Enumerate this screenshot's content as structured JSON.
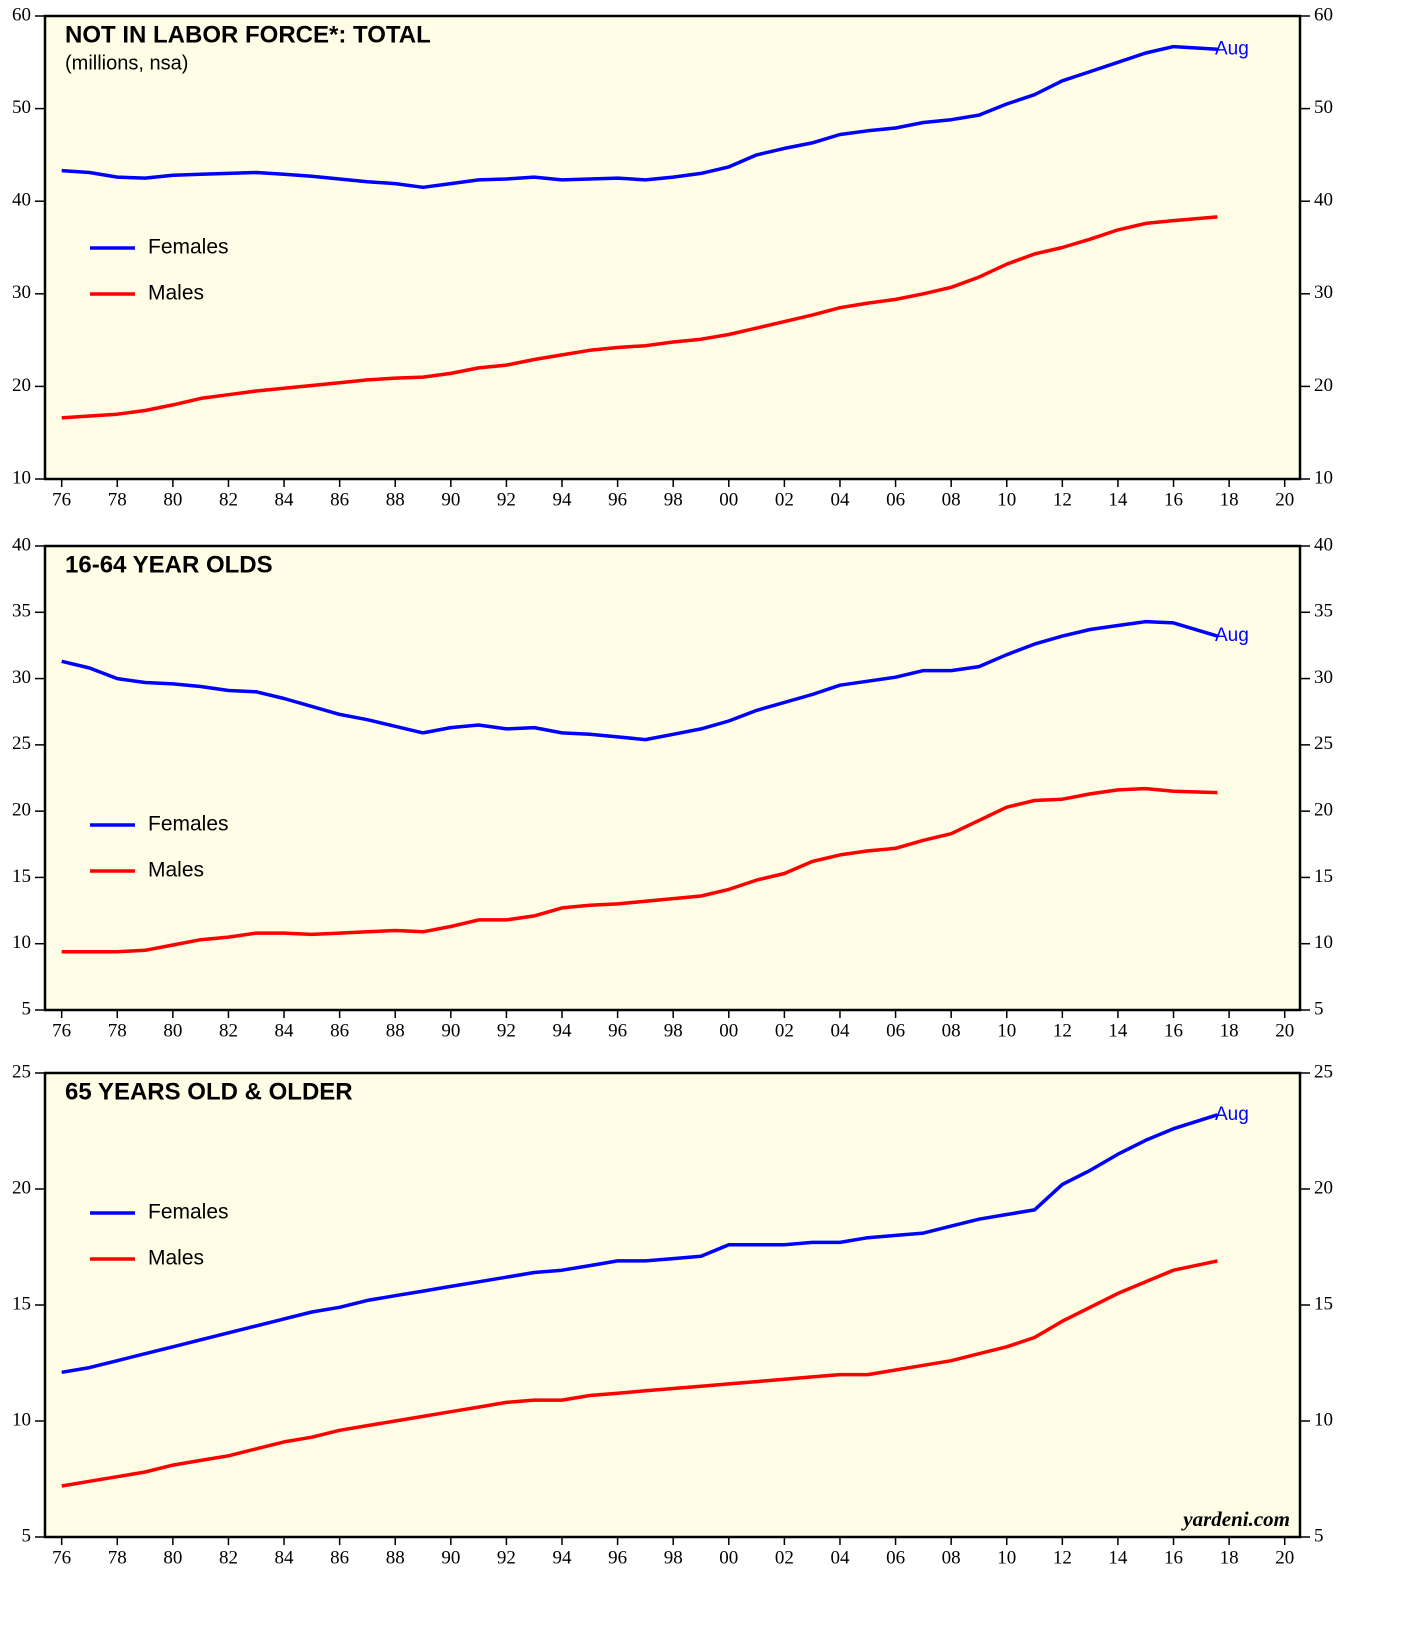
{
  "chart_data": [
    {
      "type": "line",
      "title": "NOT IN LABOR FORCE*: TOTAL",
      "subtitle": "(millions, nsa)",
      "annotation": "Aug",
      "x": [
        1976,
        1977,
        1978,
        1979,
        1980,
        1981,
        1982,
        1983,
        1984,
        1985,
        1986,
        1987,
        1988,
        1989,
        1990,
        1991,
        1992,
        1993,
        1994,
        1995,
        1996,
        1997,
        1998,
        1999,
        2000,
        2001,
        2002,
        2003,
        2004,
        2005,
        2006,
        2007,
        2008,
        2009,
        2010,
        2011,
        2012,
        2013,
        2014,
        2015,
        2016,
        2017.58
      ],
      "series": [
        {
          "name": "Females",
          "color": "#0000ff",
          "values": [
            43.3,
            43.1,
            42.6,
            42.5,
            42.8,
            42.9,
            43.0,
            43.1,
            42.9,
            42.7,
            42.4,
            42.1,
            41.9,
            41.5,
            41.9,
            42.3,
            42.4,
            42.6,
            42.3,
            42.4,
            42.5,
            42.3,
            42.6,
            43.0,
            43.7,
            45.0,
            45.7,
            46.3,
            47.2,
            47.6,
            47.9,
            48.5,
            48.8,
            49.3,
            50.5,
            51.5,
            53.0,
            54.0,
            55.0,
            56.0,
            56.7,
            56.4
          ]
        },
        {
          "name": "Males",
          "color": "#ff0000",
          "values": [
            16.6,
            16.8,
            17.0,
            17.4,
            18.0,
            18.7,
            19.1,
            19.5,
            19.8,
            20.1,
            20.4,
            20.7,
            20.9,
            21.0,
            21.4,
            22.0,
            22.3,
            22.9,
            23.4,
            23.9,
            24.2,
            24.4,
            24.8,
            25.1,
            25.6,
            26.3,
            27.0,
            27.7,
            28.5,
            29.0,
            29.4,
            30.0,
            30.7,
            31.8,
            33.2,
            34.3,
            35.0,
            35.9,
            36.9,
            37.6,
            37.9,
            38.3
          ]
        }
      ],
      "xlim": [
        1975.4,
        2020.55
      ],
      "ylim": [
        10,
        60
      ],
      "yticks": [
        10,
        20,
        30,
        40,
        50,
        60
      ],
      "xticks": [
        {
          "value": 1976,
          "label": "76"
        },
        {
          "value": 1978,
          "label": "78"
        },
        {
          "value": 1980,
          "label": "80"
        },
        {
          "value": 1982,
          "label": "82"
        },
        {
          "value": 1984,
          "label": "84"
        },
        {
          "value": 1986,
          "label": "86"
        },
        {
          "value": 1988,
          "label": "88"
        },
        {
          "value": 1990,
          "label": "90"
        },
        {
          "value": 1992,
          "label": "92"
        },
        {
          "value": 1994,
          "label": "94"
        },
        {
          "value": 1996,
          "label": "96"
        },
        {
          "value": 1998,
          "label": "98"
        },
        {
          "value": 2000,
          "label": "00"
        },
        {
          "value": 2002,
          "label": "02"
        },
        {
          "value": 2004,
          "label": "04"
        },
        {
          "value": 2006,
          "label": "06"
        },
        {
          "value": 2008,
          "label": "08"
        },
        {
          "value": 2010,
          "label": "10"
        },
        {
          "value": 2012,
          "label": "12"
        },
        {
          "value": 2014,
          "label": "14"
        },
        {
          "value": 2016,
          "label": "16"
        },
        {
          "value": 2018,
          "label": "18"
        },
        {
          "value": 2020,
          "label": "20"
        }
      ],
      "legend": "left",
      "background": "#fffde6"
    },
    {
      "type": "line",
      "title": "16-64 YEAR OLDS",
      "annotation": "Aug",
      "x": [
        1976,
        1977,
        1978,
        1979,
        1980,
        1981,
        1982,
        1983,
        1984,
        1985,
        1986,
        1987,
        1988,
        1989,
        1990,
        1991,
        1992,
        1993,
        1994,
        1995,
        1996,
        1997,
        1998,
        1999,
        2000,
        2001,
        2002,
        2003,
        2004,
        2005,
        2006,
        2007,
        2008,
        2009,
        2010,
        2011,
        2012,
        2013,
        2014,
        2015,
        2016,
        2017.58
      ],
      "series": [
        {
          "name": "Females",
          "color": "#0000ff",
          "values": [
            31.3,
            30.8,
            30.0,
            29.7,
            29.6,
            29.4,
            29.1,
            29.0,
            28.5,
            27.9,
            27.3,
            26.9,
            26.4,
            25.9,
            26.3,
            26.5,
            26.2,
            26.3,
            25.9,
            25.8,
            25.6,
            25.4,
            25.8,
            26.2,
            26.8,
            27.6,
            28.2,
            28.8,
            29.5,
            29.8,
            30.1,
            30.6,
            30.6,
            30.9,
            31.8,
            32.6,
            33.2,
            33.7,
            34.0,
            34.3,
            34.2,
            33.2
          ]
        },
        {
          "name": "Males",
          "color": "#ff0000",
          "values": [
            9.4,
            9.4,
            9.4,
            9.5,
            9.9,
            10.3,
            10.5,
            10.8,
            10.8,
            10.7,
            10.8,
            10.9,
            11.0,
            10.9,
            11.3,
            11.8,
            11.8,
            12.1,
            12.7,
            12.9,
            13.0,
            13.2,
            13.4,
            13.6,
            14.1,
            14.8,
            15.3,
            16.2,
            16.7,
            17.0,
            17.2,
            17.8,
            18.3,
            19.3,
            20.3,
            20.8,
            20.9,
            21.3,
            21.6,
            21.7,
            21.5,
            21.4
          ]
        }
      ],
      "xlim": [
        1975.4,
        2020.55
      ],
      "ylim": [
        5,
        40
      ],
      "yticks": [
        5,
        10,
        15,
        20,
        25,
        30,
        35,
        40
      ],
      "xticks": [
        {
          "value": 1976,
          "label": "76"
        },
        {
          "value": 1978,
          "label": "78"
        },
        {
          "value": 1980,
          "label": "80"
        },
        {
          "value": 1982,
          "label": "82"
        },
        {
          "value": 1984,
          "label": "84"
        },
        {
          "value": 1986,
          "label": "86"
        },
        {
          "value": 1988,
          "label": "88"
        },
        {
          "value": 1990,
          "label": "90"
        },
        {
          "value": 1992,
          "label": "92"
        },
        {
          "value": 1994,
          "label": "94"
        },
        {
          "value": 1996,
          "label": "96"
        },
        {
          "value": 1998,
          "label": "98"
        },
        {
          "value": 2000,
          "label": "00"
        },
        {
          "value": 2002,
          "label": "02"
        },
        {
          "value": 2004,
          "label": "04"
        },
        {
          "value": 2006,
          "label": "06"
        },
        {
          "value": 2008,
          "label": "08"
        },
        {
          "value": 2010,
          "label": "10"
        },
        {
          "value": 2012,
          "label": "12"
        },
        {
          "value": 2014,
          "label": "14"
        },
        {
          "value": 2016,
          "label": "16"
        },
        {
          "value": 2018,
          "label": "18"
        },
        {
          "value": 2020,
          "label": "20"
        }
      ],
      "legend": "left",
      "background": "#fffde6"
    },
    {
      "type": "line",
      "title": "65 YEARS OLD & OLDER",
      "annotation": "Aug",
      "source": "yardeni.com",
      "x": [
        1976,
        1977,
        1978,
        1979,
        1980,
        1981,
        1982,
        1983,
        1984,
        1985,
        1986,
        1987,
        1988,
        1989,
        1990,
        1991,
        1992,
        1993,
        1994,
        1995,
        1996,
        1997,
        1998,
        1999,
        2000,
        2001,
        2002,
        2003,
        2004,
        2005,
        2006,
        2007,
        2008,
        2009,
        2010,
        2011,
        2012,
        2013,
        2014,
        2015,
        2016,
        2017.58
      ],
      "series": [
        {
          "name": "Females",
          "color": "#0000ff",
          "values": [
            12.1,
            12.3,
            12.6,
            12.9,
            13.2,
            13.5,
            13.8,
            14.1,
            14.4,
            14.7,
            14.9,
            15.2,
            15.4,
            15.6,
            15.8,
            16.0,
            16.2,
            16.4,
            16.5,
            16.7,
            16.9,
            16.9,
            17.0,
            17.1,
            17.6,
            17.6,
            17.6,
            17.7,
            17.7,
            17.9,
            18.0,
            18.1,
            18.4,
            18.7,
            18.9,
            19.1,
            20.2,
            20.8,
            21.5,
            22.1,
            22.6,
            23.2
          ]
        },
        {
          "name": "Males",
          "color": "#ff0000",
          "values": [
            7.2,
            7.4,
            7.6,
            7.8,
            8.1,
            8.3,
            8.5,
            8.8,
            9.1,
            9.3,
            9.6,
            9.8,
            10.0,
            10.2,
            10.4,
            10.6,
            10.8,
            10.9,
            10.9,
            11.1,
            11.2,
            11.3,
            11.4,
            11.5,
            11.6,
            11.7,
            11.8,
            11.9,
            12.0,
            12.0,
            12.2,
            12.4,
            12.6,
            12.9,
            13.2,
            13.6,
            14.3,
            14.9,
            15.5,
            16.0,
            16.5,
            16.9
          ]
        }
      ],
      "xlim": [
        1975.4,
        2020.55
      ],
      "ylim": [
        5,
        25
      ],
      "yticks": [
        5,
        10,
        15,
        20,
        25
      ],
      "xticks": [
        {
          "value": 1976,
          "label": "76"
        },
        {
          "value": 1978,
          "label": "78"
        },
        {
          "value": 1980,
          "label": "80"
        },
        {
          "value": 1982,
          "label": "82"
        },
        {
          "value": 1984,
          "label": "84"
        },
        {
          "value": 1986,
          "label": "86"
        },
        {
          "value": 1988,
          "label": "88"
        },
        {
          "value": 1990,
          "label": "90"
        },
        {
          "value": 1992,
          "label": "92"
        },
        {
          "value": 1994,
          "label": "94"
        },
        {
          "value": 1996,
          "label": "96"
        },
        {
          "value": 1998,
          "label": "98"
        },
        {
          "value": 2000,
          "label": "00"
        },
        {
          "value": 2002,
          "label": "02"
        },
        {
          "value": 2004,
          "label": "04"
        },
        {
          "value": 2006,
          "label": "06"
        },
        {
          "value": 2008,
          "label": "08"
        },
        {
          "value": 2010,
          "label": "10"
        },
        {
          "value": 2012,
          "label": "12"
        },
        {
          "value": 2014,
          "label": "14"
        },
        {
          "value": 2016,
          "label": "16"
        },
        {
          "value": 2018,
          "label": "18"
        },
        {
          "value": 2020,
          "label": "20"
        }
      ],
      "legend": "left",
      "background": "#fffde6"
    }
  ]
}
